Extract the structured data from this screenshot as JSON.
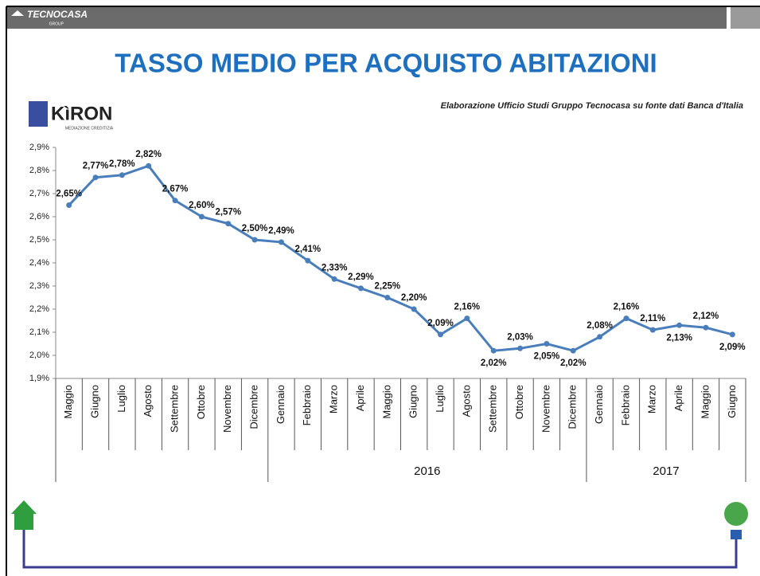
{
  "header": {
    "brand": "TECNOCASA",
    "brand_sub": "GROUP",
    "logo": "KìRON",
    "logo_sub": "MEDIAZIONE CREDITIZIA"
  },
  "chart_data": {
    "type": "line",
    "title": "TASSO MEDIO PER ACQUISTO ABITAZIONI",
    "source": "Elaborazione Ufficio Studi Gruppo Tecnocasa su fonte dati Banca d'Italia",
    "categories": [
      "Maggio",
      "Giugno",
      "Luglio",
      "Agosto",
      "Settembre",
      "Ottobre",
      "Novembre",
      "Dicembre",
      "Gennaio",
      "Febbraio",
      "Marzo",
      "Aprile",
      "Maggio",
      "Giugno",
      "Luglio",
      "Agosto",
      "Settembre",
      "Ottobre",
      "Novembre",
      "Dicembre",
      "Gennaio",
      "Febbraio",
      "Marzo",
      "Aprile",
      "Maggio",
      "Giugno"
    ],
    "category_groups": [
      {
        "label": null,
        "count": 8
      },
      {
        "label": "2016",
        "count": 12
      },
      {
        "label": "2017",
        "count": 6
      }
    ],
    "values": [
      2.65,
      2.77,
      2.78,
      2.82,
      2.67,
      2.6,
      2.57,
      2.5,
      2.49,
      2.41,
      2.33,
      2.29,
      2.25,
      2.2,
      2.09,
      2.16,
      2.02,
      2.03,
      2.05,
      2.02,
      2.08,
      2.16,
      2.11,
      2.13,
      2.12,
      2.09
    ],
    "value_labels": [
      "2,65%",
      "2,77%",
      "2,78%",
      "2,82%",
      "2,67%",
      "2,60%",
      "2,57%",
      "2,50%",
      "2,49%",
      "2,41%",
      "2,33%",
      "2,29%",
      "2,25%",
      "2,20%",
      "2,09%",
      "2,16%",
      "2,02%",
      "2,03%",
      "2,05%",
      "2,02%",
      "2,08%",
      "2,16%",
      "2,11%",
      "2,13%",
      "2,12%",
      "2,09%"
    ],
    "color": "#4a7ebb",
    "ylim": [
      1.9,
      2.9
    ],
    "yticks": [
      {
        "value": 1.9,
        "label": "1,9%"
      },
      {
        "value": 2.0,
        "label": "2,0%"
      },
      {
        "value": 2.1,
        "label": "2,1%"
      },
      {
        "value": 2.2,
        "label": "2,2%"
      },
      {
        "value": 2.3,
        "label": "2,3%"
      },
      {
        "value": 2.4,
        "label": "2,4%"
      },
      {
        "value": 2.5,
        "label": "2,5%"
      },
      {
        "value": 2.6,
        "label": "2,6%"
      },
      {
        "value": 2.7,
        "label": "2,7%"
      },
      {
        "value": 2.8,
        "label": "2,8%"
      },
      {
        "value": 2.9,
        "label": "2,9%"
      }
    ]
  }
}
